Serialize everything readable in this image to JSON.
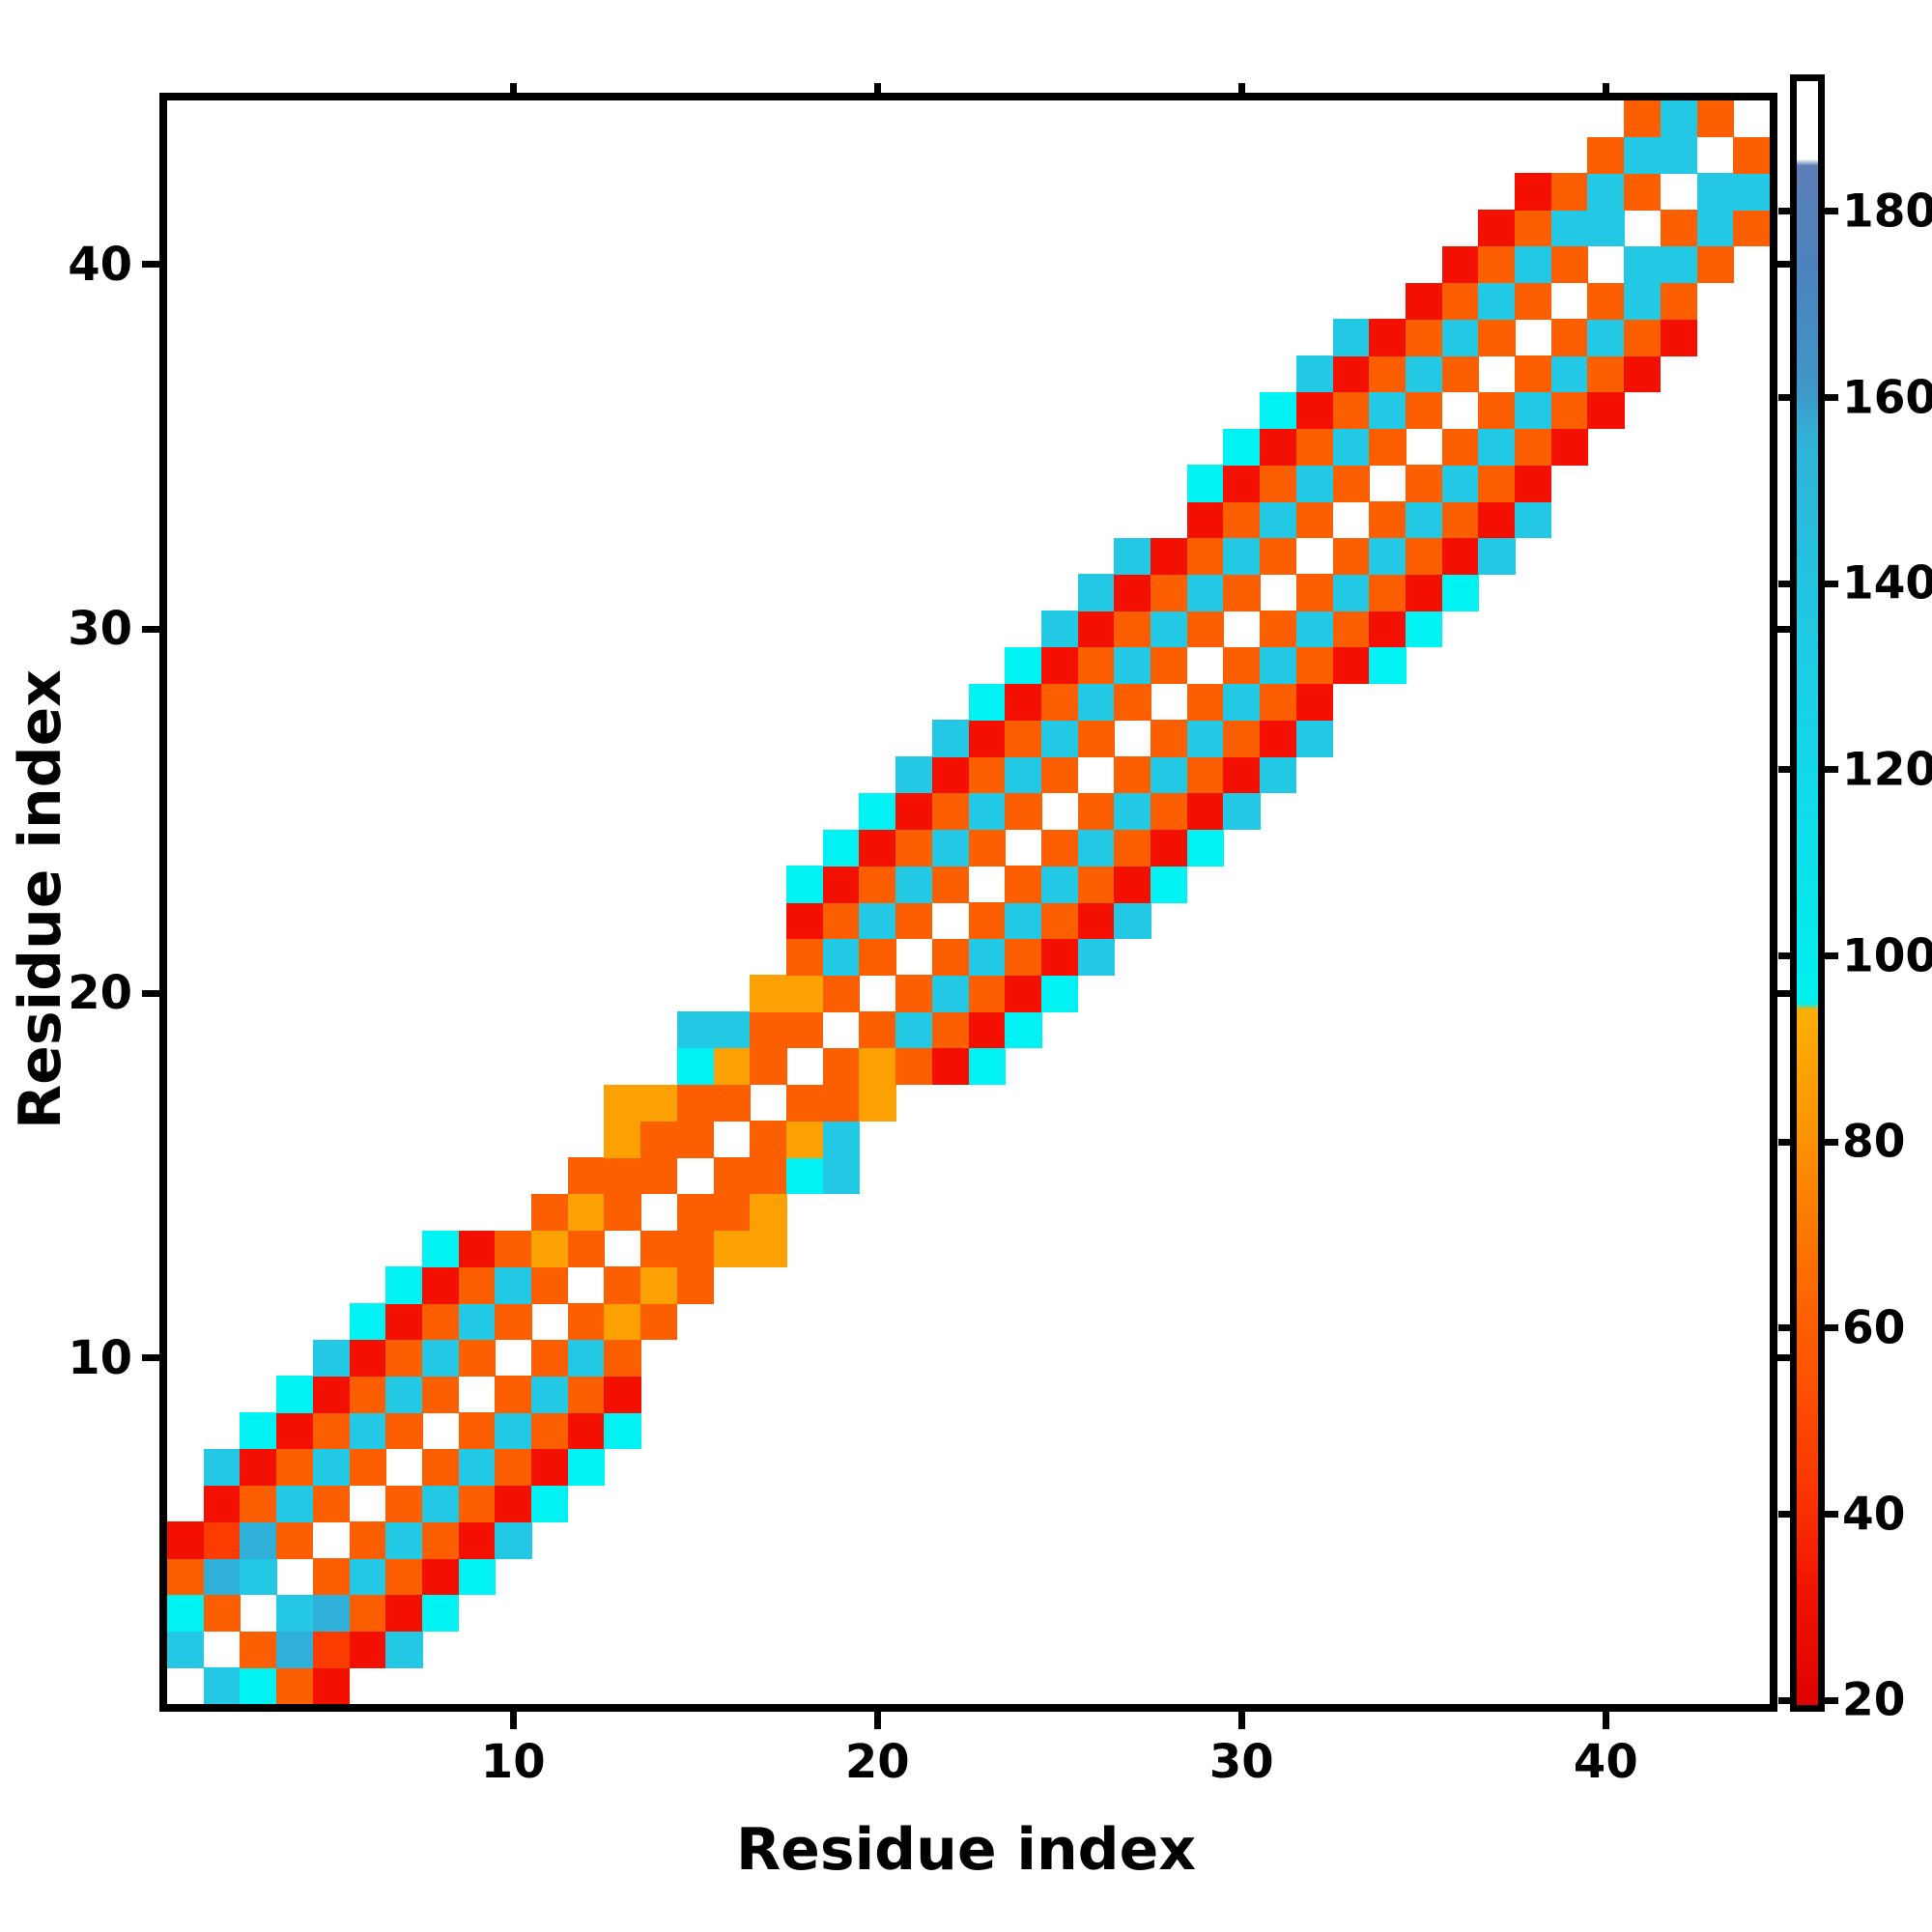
{
  "chart_data": {
    "type": "heatmap",
    "title": "",
    "xlabel": "Residue index",
    "ylabel": "Residue index",
    "n_residues": 44,
    "axis_range": [
      1,
      44
    ],
    "x_ticks": [
      10,
      20,
      30,
      40
    ],
    "y_ticks": [
      10,
      20,
      30,
      40
    ],
    "grid": "off",
    "legend_position": "right-colorbar",
    "colorbar": {
      "ticks": [
        20,
        40,
        60,
        80,
        100,
        120,
        140,
        160,
        180
      ],
      "value_top": 194,
      "value_bottom": 19.5,
      "segments_top_to_bottom": [
        "white",
        "steel-blue",
        "cyan",
        "bright-cyan",
        "amber",
        "orange",
        "orange-red",
        "red",
        "dark-red"
      ]
    },
    "palette": {
      "R": "#f31000",
      "Q": "#fa3c00",
      "O": "#fc5f02",
      "A": "#fba103",
      "T": "#00f2f2",
      "C": "#22c8e4",
      "D": "#2fb0d8"
    },
    "palette_values": {
      "R": 28,
      "Q": 48,
      "O": 62,
      "A": 82,
      "T": 96,
      "C": 118,
      "D": 135
    },
    "band_offsets": [
      -5,
      -4,
      -3,
      -2,
      -1,
      0,
      1,
      2,
      3,
      4,
      5
    ],
    "row_band_colors_note": "One string per residue row (1..44, bottom to top). Chars map to offsets -5..+5 vs diagonal. '.'=diagonal (white), 'W'=empty/white, letters=palette colors.",
    "rows": [
      "WWWWW.CTORW",
      "WWWWC.ODQRC",
      "WWWTO.CDORT",
      "WWODC.OCORT",
      "WRQDO.OCORC",
      "WROCO.OCORT",
      "CROCO.OCORT",
      "TROCO.OCORT",
      "TROCO.OCORW",
      "CROCO.OCOWW",
      "TROCO.OAOWW",
      "TROCO.OAOWW",
      "TROAO.OOAAW",
      "WWOAO.OOAWW",
      "WWOOO.OOTCW",
      "WWAOO.OACWW",
      "WAAOO.OOAWW",
      "WWTAO.OAORT",
      "WCCOO.OCORT",
      "WWAAO.OCORT",
      "WWOCO.OCORC",
      "WROCO.OCORC",
      "TROCO.OCORT",
      "TROCO.OCORT",
      "TROCO.OCORC",
      "CROCO.OCORC",
      "CROCO.OCORC",
      "TROCO.OCORW",
      "TROCO.OCORT",
      "CROCO.OCORT",
      "CROCO.OCORT",
      "CROCO.OCORC",
      "WROCO.OCORC",
      "TROCO.OCORW",
      "TROCO.OCORW",
      "TROCO.OCORW",
      "CROCO.OCORW",
      "CROCO.OCORW",
      "WROCO.OCOWW",
      "WROCO.CCOWW",
      "WROCC.OCOWW",
      "WROCO.CCWWW",
      "WWOCC.OWWWW",
      "WWOCO.WWWWW"
    ]
  }
}
